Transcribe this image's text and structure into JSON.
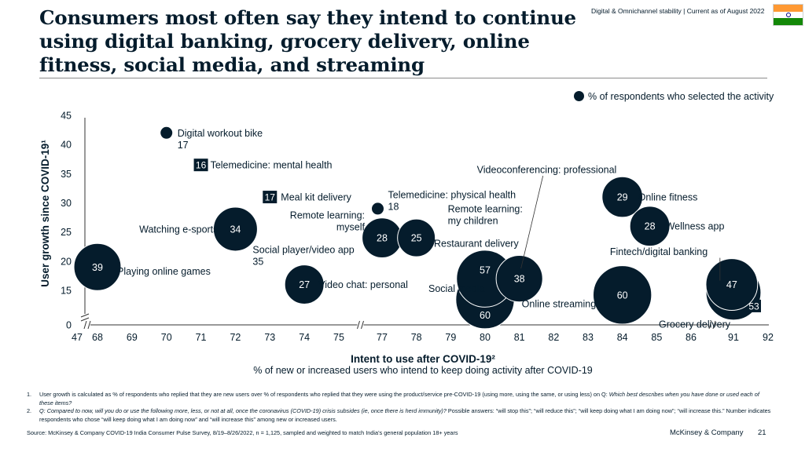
{
  "title": "Consumers most often say they intend to continue using digital banking, grocery delivery, online fitness, social media, and streaming",
  "header_tag": "Digital & Omnichannel stability | Current as of August 2022",
  "flag": {
    "name": "india-flag-icon",
    "colors": [
      "#ff9933",
      "#ffffff",
      "#138808"
    ],
    "chakra": "#000080"
  },
  "legend": {
    "label": "% of respondents who selected the activity"
  },
  "colors": {
    "navy": "#051c2c",
    "axis": "#333333",
    "white": "#ffffff"
  },
  "chart_data": {
    "type": "scatter",
    "encoding": "bubble (x = intent to use, y = user growth, label number = % of respondents who selected the activity)",
    "x_ticks": [
      "47",
      "68",
      "69",
      "70",
      "71",
      "72",
      "73",
      "74",
      "75",
      "77",
      "78",
      "79",
      "80",
      "81",
      "82",
      "83",
      "84",
      "85",
      "86",
      "91",
      "92"
    ],
    "y_ticks": [
      "0",
      "15",
      "20",
      "25",
      "30",
      "35",
      "40",
      "45"
    ],
    "xlim": [
      47,
      92
    ],
    "ylim": [
      0,
      45
    ],
    "x_breaks": [
      "47-68",
      "75-77",
      "86-91"
    ],
    "y_breaks": [
      "0-15"
    ],
    "xlabel": "Intent to use after COVID-19²",
    "xsublabel": "% of new or increased users who intend to keep doing activity after COVID-19",
    "ylabel": "User growth since COVID-19¹",
    "points": [
      {
        "name": "Digital workout bike",
        "name_label": "Digital workout bike",
        "x": 70.0,
        "y": 42.0,
        "value": 17,
        "value_label": "17"
      },
      {
        "name": "Telemedicine: mental health",
        "name_label": "Telemedicine: mental health",
        "x": 71.0,
        "y": 36.5,
        "value": 16,
        "value_label": "16"
      },
      {
        "name": "Meal kit delivery",
        "name_label": "Meal kit delivery",
        "x": 73.0,
        "y": 31.0,
        "value": 17,
        "value_label": "17"
      },
      {
        "name": "Telemedicine: physical health",
        "name_label": "Telemedicine: physical health",
        "x": 76.8,
        "y": 29.0,
        "value": 18,
        "value_label": "18"
      },
      {
        "name": "Online fitness",
        "name_label": "Online fitness",
        "x": 84.0,
        "y": 31.0,
        "value": 29,
        "value_label": "29"
      },
      {
        "name": "Wellness app",
        "name_label": "Wellness app",
        "x": 84.8,
        "y": 26.0,
        "value": 28,
        "value_label": "28"
      },
      {
        "name": "Watching e-sports",
        "name_label": "Watching e-sports",
        "x": 72.0,
        "y": 25.5,
        "value": 34,
        "value_label": "34"
      },
      {
        "name": "Social player/video app",
        "name_label": "Social player/video app",
        "x": 72.0,
        "y": 23.5,
        "value": 35,
        "value_label": "35"
      },
      {
        "name": "Remote learning: myself",
        "name_label": "Remote learning:\nmyself",
        "x": 77.0,
        "y": 24.0,
        "value": 28,
        "value_label": "28"
      },
      {
        "name": "Remote learning: my children",
        "name_label": "Remote learning:\nmy children",
        "x": 78.0,
        "y": 24.0,
        "value": 25,
        "value_label": "25"
      },
      {
        "name": "Playing online games",
        "name_label": "Playing online games",
        "x": 68.0,
        "y": 19.0,
        "value": 39,
        "value_label": "39"
      },
      {
        "name": "Video chat: personal",
        "name_label": "Video chat: personal",
        "x": 74.0,
        "y": 16.0,
        "value": 27,
        "value_label": "27"
      },
      {
        "name": "Restaurant delivery",
        "name_label": "Restaurant delivery",
        "x": 80.0,
        "y": 17.0,
        "value": 57,
        "value_label": "57"
      },
      {
        "name": "Videoconferencing: professional",
        "name_label": "Videoconferencing: professional",
        "x": 81.0,
        "y": 17.0,
        "value": 38,
        "value_label": "38"
      },
      {
        "name": "Social media",
        "name_label": "Social media",
        "x": 80.0,
        "y": 11.0,
        "value": 60,
        "value_label": "60"
      },
      {
        "name": "Online streaming",
        "name_label": "Online streaming",
        "x": 84.0,
        "y": 13.0,
        "value": 60,
        "value_label": "60"
      },
      {
        "name": "Fintech/digital banking",
        "name_label": "Fintech/digital banking",
        "x": 90.8,
        "y": 16.0,
        "value": 47,
        "value_label": "47"
      },
      {
        "name": "Grocery delivery",
        "name_label": "Grocery delivery",
        "x": 91.0,
        "y": 14.0,
        "value": 53,
        "value_label": "53"
      }
    ]
  },
  "footnotes": [
    {
      "num": "1.",
      "text_plain": "User growth is calculated as % of respondents who replied that they are new users over % of respondents who replied that they were using the product/service pre-COVID-19 (using more, using the same, or using less) on Q: ",
      "text_italic": "Which best describes when you have done or used each of these items?"
    },
    {
      "num": "2.",
      "text_italic": "Q: Compared to now, will you do or use the following more, less, or not at all, once the coronavirus (COVID-19) crisis subsides (ie, once there is herd immunity)?",
      "text_plain": " Possible answers: “will stop this”; “will reduce this”; “will keep doing what I am doing now”; “will increase this.” Number indicates respondents who chose “will keep doing what I am doing now” and “will increase this” among new or increased users."
    }
  ],
  "source": "Source: McKinsey & Company COVID-19 India Consumer Pulse Survey, 8/19–8/26/2022, n = 1,125, sampled and weighted to match India’s general population 18+ years",
  "brand": "McKinsey & Company",
  "page_number": "21"
}
